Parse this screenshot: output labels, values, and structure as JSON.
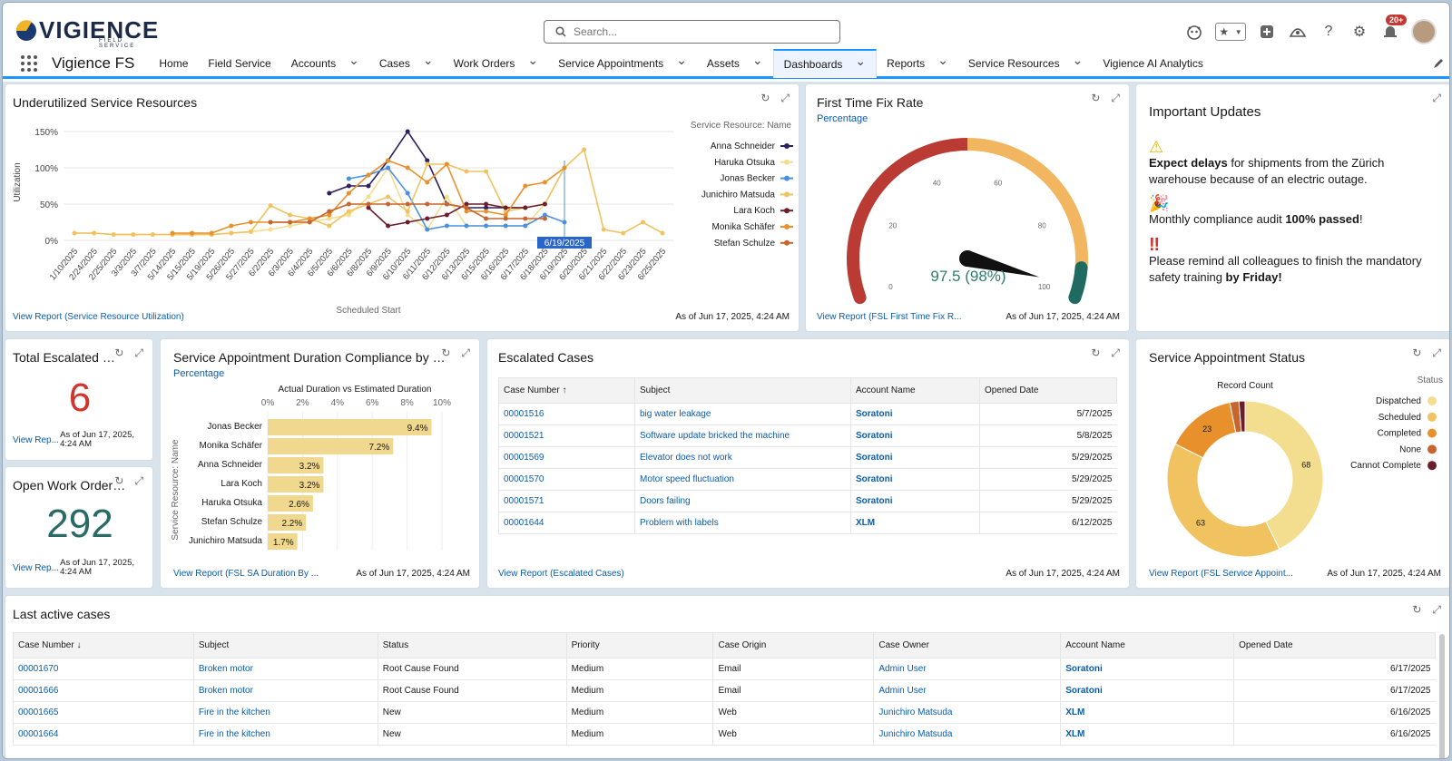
{
  "header": {
    "logo_text": "VIGIENCE",
    "logo_sub": "FIELD SERVICE",
    "search_placeholder": "Search...",
    "notif_count": "20+"
  },
  "nav": {
    "app_name": "Vigience FS",
    "items": [
      {
        "label": "Home",
        "chevron": false
      },
      {
        "label": "Field Service",
        "chevron": false
      },
      {
        "label": "Accounts",
        "chevron": true
      },
      {
        "label": "Cases",
        "chevron": true
      },
      {
        "label": "Work Orders",
        "chevron": true
      },
      {
        "label": "Service Appointments",
        "chevron": true
      },
      {
        "label": "Assets",
        "chevron": true
      },
      {
        "label": "Dashboards",
        "chevron": true,
        "active": true
      },
      {
        "label": "Reports",
        "chevron": true
      },
      {
        "label": "Service Resources",
        "chevron": true
      },
      {
        "label": "Vigience AI Analytics",
        "chevron": false
      }
    ]
  },
  "asof": "As of Jun 17, 2025, 4:24 AM",
  "asof_short1": "As of Jun 17, 2025,",
  "asof_short2": "4:24 AM",
  "underutilized": {
    "title": "Underutilized Service Resources",
    "view_report": "View Report (Service Resource Utilization)",
    "legend_title": "Service Resource: Name",
    "xlabel": "Scheduled Start",
    "ylabel": "Utilization",
    "highlight": "6/19/2025"
  },
  "ftfr": {
    "title": "First Time Fix Rate",
    "subtitle": "Percentage",
    "value": "97.5 (98%)",
    "view_report": "View Report (FSL First Time Fix R...",
    "ticks": [
      "0",
      "20",
      "40",
      "60",
      "80",
      "100"
    ]
  },
  "updates": {
    "title": "Important Updates",
    "u1_bold": "Expect delays",
    "u1_rest": " for shipments from the Zürich warehouse because of an electric outage.",
    "u2_pre": "Monthly compliance audit ",
    "u2_bold": "100% passed",
    "u2_post": "!",
    "u3_pre": "Please remind all colleagues to finish the mandatory safety training ",
    "u3_bold": "by Friday!"
  },
  "escalated_total": {
    "title": "Total Escalated Cases",
    "value": "6",
    "view_report": "View Rep..."
  },
  "open_wo": {
    "title": "Open Work Order C...",
    "value": "292",
    "view_report": "View Rep..."
  },
  "duration": {
    "title": "Service Appointment Duration Compliance by Res...",
    "subtitle": "Percentage",
    "axis_title": "Actual Duration vs Estimated Duration",
    "ylabel": "Service Resource: Name",
    "view_report": "View Report (FSL SA Duration By ..."
  },
  "escalated": {
    "title": "Escalated Cases",
    "view_report": "View Report (Escalated Cases)",
    "columns": [
      "Case Number ↑",
      "Subject",
      "Account Name",
      "Opened Date"
    ],
    "rows": [
      {
        "num": "00001516",
        "subject": "big water leakage",
        "account": "Soratoni",
        "date": "5/7/2025"
      },
      {
        "num": "00001521",
        "subject": "Software update bricked the machine",
        "account": "Soratoni",
        "date": "5/8/2025"
      },
      {
        "num": "00001569",
        "subject": "Elevator does not work",
        "account": "Soratoni",
        "date": "5/29/2025"
      },
      {
        "num": "00001570",
        "subject": "Motor speed fluctuation",
        "account": "Soratoni",
        "date": "5/29/2025"
      },
      {
        "num": "00001571",
        "subject": "Doors failing",
        "account": "Soratoni",
        "date": "5/29/2025"
      },
      {
        "num": "00001644",
        "subject": "Problem with labels",
        "account": "XLM",
        "date": "6/12/2025"
      }
    ]
  },
  "sa_status": {
    "title": "Service Appointment Status",
    "view_report": "View Report (FSL Service Appoint...",
    "legend_title": "Status",
    "center_title": "Record Count"
  },
  "last_active": {
    "title": "Last active cases",
    "columns": [
      "Case Number ↓",
      "Subject",
      "Status",
      "Priority",
      "Case Origin",
      "Case Owner",
      "Account Name",
      "Opened Date"
    ],
    "rows": [
      {
        "num": "00001670",
        "subject": "Broken motor",
        "status": "Root Cause Found",
        "priority": "Medium",
        "origin": "Email",
        "owner": "Admin User",
        "account": "Soratoni",
        "date": "6/17/2025"
      },
      {
        "num": "00001666",
        "subject": "Broken motor",
        "status": "Root Cause Found",
        "priority": "Medium",
        "origin": "Email",
        "owner": "Admin User",
        "account": "Soratoni",
        "date": "6/17/2025"
      },
      {
        "num": "00001665",
        "subject": "Fire in the kitchen",
        "status": "New",
        "priority": "Medium",
        "origin": "Web",
        "owner": "Junichiro Matsuda",
        "account": "XLM",
        "date": "6/16/2025"
      },
      {
        "num": "00001664",
        "subject": "Fire in the kitchen",
        "status": "New",
        "priority": "Medium",
        "origin": "Web",
        "owner": "Junichiro Matsuda",
        "account": "XLM",
        "date": "6/16/2025"
      }
    ]
  },
  "chart_data": [
    {
      "type": "line",
      "title": "Underutilized Service Resources",
      "xlabel": "Scheduled Start",
      "ylabel": "Utilization",
      "ylim": [
        0,
        160
      ],
      "yticks": [
        "0%",
        "50%",
        "100%",
        "150%"
      ],
      "x": [
        "1/10/2025",
        "2/24/2025",
        "2/25/2025",
        "3/3/2025",
        "3/7/2025",
        "5/14/2025",
        "5/15/2025",
        "5/19/2025",
        "5/26/2025",
        "5/27/2025",
        "6/2/2025",
        "6/3/2025",
        "6/4/2025",
        "6/5/2025",
        "6/6/2025",
        "6/8/2025",
        "6/9/2025",
        "6/10/2025",
        "6/11/2025",
        "6/12/2025",
        "6/13/2025",
        "6/15/2025",
        "6/16/2025",
        "6/17/2025",
        "6/18/2025",
        "6/19/2025",
        "6/20/2025",
        "6/21/2025",
        "6/22/2025",
        "6/23/2025",
        "6/25/2025"
      ],
      "legend": "top-right",
      "series": [
        {
          "name": "Anna Schneider",
          "color": "#2f1f5e",
          "values": [
            null,
            null,
            null,
            null,
            null,
            null,
            null,
            null,
            null,
            null,
            null,
            null,
            null,
            65,
            75,
            75,
            110,
            150,
            110,
            50,
            45,
            45,
            45,
            45,
            null,
            null,
            null,
            null,
            null,
            null,
            null
          ]
        },
        {
          "name": "Haruka Otsuka",
          "color": "#f3dd8f",
          "values": [
            10,
            10,
            8,
            8,
            8,
            8,
            8,
            8,
            10,
            12,
            15,
            20,
            25,
            30,
            35,
            60,
            100,
            35,
            15,
            60,
            20,
            20,
            20,
            20,
            50,
            null,
            null,
            null,
            null,
            null,
            null
          ]
        },
        {
          "name": "Jonas Becker",
          "color": "#4a90e2",
          "values": [
            null,
            null,
            null,
            null,
            null,
            null,
            null,
            null,
            null,
            null,
            null,
            null,
            null,
            null,
            85,
            90,
            100,
            65,
            15,
            20,
            20,
            20,
            20,
            20,
            35,
            25,
            null,
            null,
            null,
            null,
            null
          ]
        },
        {
          "name": "Junichiro Matsuda",
          "color": "#f0c260",
          "values": [
            10,
            10,
            8,
            8,
            8,
            8,
            8,
            8,
            10,
            12,
            48,
            35,
            30,
            20,
            40,
            50,
            60,
            40,
            105,
            105,
            95,
            95,
            40,
            45,
            50,
            100,
            125,
            15,
            10,
            25,
            10
          ]
        },
        {
          "name": "Lara Koch",
          "color": "#6b1f2c",
          "values": [
            null,
            null,
            null,
            null,
            null,
            null,
            null,
            null,
            null,
            null,
            null,
            null,
            null,
            null,
            null,
            45,
            20,
            25,
            30,
            35,
            50,
            50,
            45,
            45,
            50,
            null,
            null,
            null,
            null,
            null,
            null
          ]
        },
        {
          "name": "Monika Schäfer",
          "color": "#e8912c",
          "values": [
            null,
            null,
            null,
            null,
            null,
            10,
            10,
            10,
            20,
            25,
            25,
            25,
            30,
            35,
            65,
            90,
            110,
            100,
            80,
            105,
            40,
            40,
            35,
            75,
            80,
            100,
            null,
            null,
            null,
            null,
            null
          ]
        },
        {
          "name": "Stefan Schulze",
          "color": "#c8642e",
          "values": [
            null,
            null,
            null,
            null,
            null,
            null,
            null,
            null,
            null,
            null,
            25,
            25,
            25,
            40,
            50,
            50,
            50,
            50,
            50,
            50,
            45,
            30,
            30,
            30,
            30,
            null,
            null,
            null,
            null,
            null,
            null
          ]
        }
      ]
    },
    {
      "type": "gauge",
      "title": "First Time Fix Rate",
      "value": 97.5,
      "min": 0,
      "max": 100,
      "bands": [
        {
          "to": 50,
          "color": "#ba3a34"
        },
        {
          "to": 93,
          "color": "#f2b661"
        },
        {
          "to": 100,
          "color": "#1f6b62"
        }
      ]
    },
    {
      "type": "bar",
      "title": "Service Appointment Duration Compliance by Res...",
      "xlabel": "Actual Duration vs Estimated Duration",
      "ylabel": "Service Resource: Name",
      "xlim": [
        0,
        10
      ],
      "xticks": [
        "0%",
        "2%",
        "4%",
        "6%",
        "8%",
        "10%"
      ],
      "categories": [
        "Jonas Becker",
        "Monika Schäfer",
        "Anna Schneider",
        "Lara Koch",
        "Haruka Otsuka",
        "Stefan Schulze",
        "Junichiro Matsuda"
      ],
      "values": [
        9.4,
        7.2,
        3.2,
        3.2,
        2.6,
        2.2,
        1.7
      ],
      "labels": [
        "9.4%",
        "7.2%",
        "3.2%",
        "3.2%",
        "2.6%",
        "2.2%",
        "1.7%"
      ],
      "color": "#f0d88e"
    },
    {
      "type": "pie",
      "title": "Service Appointment Status",
      "legend": "right",
      "categories": [
        "Dispatched",
        "Scheduled",
        "Completed",
        "None",
        "Cannot Complete"
      ],
      "values": [
        68,
        63,
        23,
        3,
        2
      ],
      "labels": [
        "68",
        "63",
        "23",
        "",
        ""
      ],
      "colors": [
        "#f3dd8f",
        "#f0c260",
        "#e8912c",
        "#c8642e",
        "#6b1f2c"
      ]
    }
  ]
}
